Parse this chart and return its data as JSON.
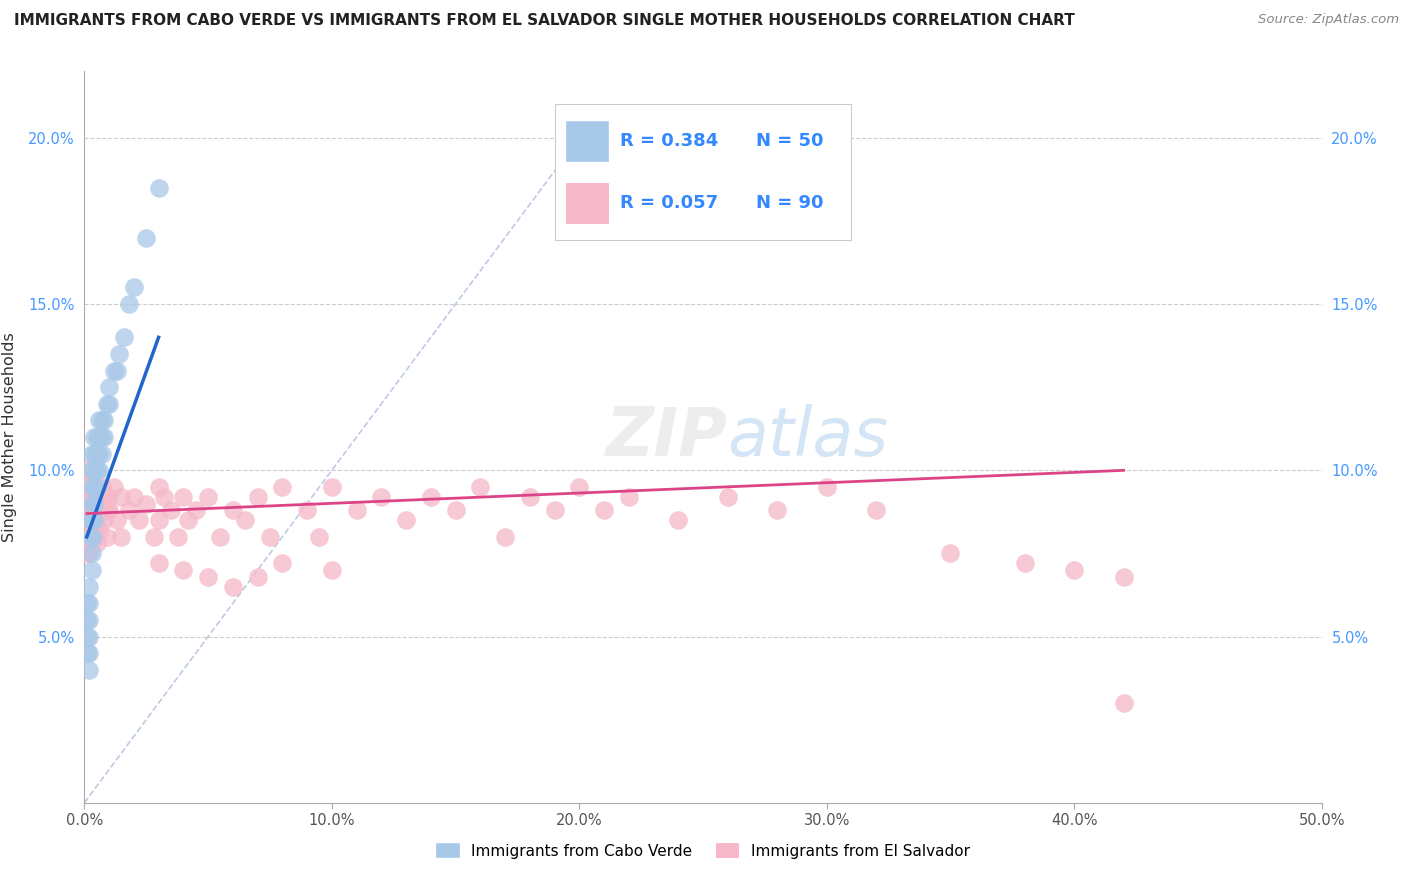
{
  "title": "IMMIGRANTS FROM CABO VERDE VS IMMIGRANTS FROM EL SALVADOR SINGLE MOTHER HOUSEHOLDS CORRELATION CHART",
  "source": "Source: ZipAtlas.com",
  "ylabel": "Single Mother Households",
  "xlim": [
    0.0,
    0.5
  ],
  "ylim": [
    0.0,
    0.22
  ],
  "xticks": [
    0.0,
    0.1,
    0.2,
    0.3,
    0.4,
    0.5
  ],
  "xticklabels": [
    "0.0%",
    "10.0%",
    "20.0%",
    "30.0%",
    "40.0%",
    "50.0%"
  ],
  "yticks": [
    0.0,
    0.05,
    0.1,
    0.15,
    0.2
  ],
  "yticklabels": [
    "",
    "5.0%",
    "10.0%",
    "15.0%",
    "20.0%"
  ],
  "R_blue": 0.384,
  "N_blue": 50,
  "R_pink": 0.057,
  "N_pink": 90,
  "blue_color": "#a8c8e8",
  "pink_color": "#f4b8c8",
  "blue_line_color": "#2266cc",
  "pink_line_color": "#dd4488",
  "dashed_line_color": "#aabfdd",
  "cabo_verde_x": [
    0.001,
    0.001,
    0.001,
    0.001,
    0.002,
    0.002,
    0.002,
    0.002,
    0.002,
    0.002,
    0.003,
    0.003,
    0.003,
    0.003,
    0.003,
    0.003,
    0.003,
    0.003,
    0.003,
    0.003,
    0.004,
    0.004,
    0.004,
    0.004,
    0.004,
    0.004,
    0.005,
    0.005,
    0.005,
    0.005,
    0.006,
    0.006,
    0.006,
    0.006,
    0.007,
    0.007,
    0.007,
    0.008,
    0.008,
    0.009,
    0.01,
    0.01,
    0.012,
    0.013,
    0.014,
    0.016,
    0.018,
    0.02,
    0.025,
    0.03
  ],
  "cabo_verde_y": [
    0.045,
    0.05,
    0.055,
    0.06,
    0.04,
    0.045,
    0.05,
    0.055,
    0.06,
    0.065,
    0.07,
    0.075,
    0.08,
    0.085,
    0.09,
    0.095,
    0.1,
    0.105,
    0.085,
    0.08,
    0.09,
    0.095,
    0.1,
    0.105,
    0.11,
    0.085,
    0.095,
    0.1,
    0.105,
    0.11,
    0.1,
    0.105,
    0.11,
    0.115,
    0.105,
    0.11,
    0.115,
    0.11,
    0.115,
    0.12,
    0.12,
    0.125,
    0.13,
    0.13,
    0.135,
    0.14,
    0.15,
    0.155,
    0.17,
    0.185
  ],
  "el_salvador_x": [
    0.001,
    0.001,
    0.001,
    0.001,
    0.001,
    0.002,
    0.002,
    0.002,
    0.002,
    0.002,
    0.002,
    0.003,
    0.003,
    0.003,
    0.003,
    0.003,
    0.004,
    0.004,
    0.004,
    0.004,
    0.005,
    0.005,
    0.005,
    0.006,
    0.006,
    0.006,
    0.007,
    0.007,
    0.008,
    0.008,
    0.009,
    0.009,
    0.01,
    0.01,
    0.012,
    0.013,
    0.015,
    0.015,
    0.018,
    0.02,
    0.022,
    0.025,
    0.028,
    0.03,
    0.03,
    0.032,
    0.035,
    0.038,
    0.04,
    0.042,
    0.045,
    0.05,
    0.055,
    0.06,
    0.065,
    0.07,
    0.075,
    0.08,
    0.09,
    0.095,
    0.1,
    0.11,
    0.12,
    0.13,
    0.14,
    0.15,
    0.16,
    0.17,
    0.18,
    0.19,
    0.2,
    0.21,
    0.22,
    0.24,
    0.26,
    0.28,
    0.3,
    0.32,
    0.35,
    0.38,
    0.4,
    0.42,
    0.03,
    0.04,
    0.05,
    0.06,
    0.07,
    0.08,
    0.1,
    0.42
  ],
  "el_salvador_y": [
    0.085,
    0.09,
    0.095,
    0.1,
    0.075,
    0.085,
    0.088,
    0.092,
    0.097,
    0.08,
    0.075,
    0.09,
    0.085,
    0.092,
    0.078,
    0.095,
    0.088,
    0.092,
    0.082,
    0.095,
    0.085,
    0.09,
    0.078,
    0.092,
    0.088,
    0.082,
    0.09,
    0.095,
    0.085,
    0.092,
    0.088,
    0.08,
    0.092,
    0.088,
    0.095,
    0.085,
    0.092,
    0.08,
    0.088,
    0.092,
    0.085,
    0.09,
    0.08,
    0.095,
    0.085,
    0.092,
    0.088,
    0.08,
    0.092,
    0.085,
    0.088,
    0.092,
    0.08,
    0.088,
    0.085,
    0.092,
    0.08,
    0.095,
    0.088,
    0.08,
    0.095,
    0.088,
    0.092,
    0.085,
    0.092,
    0.088,
    0.095,
    0.08,
    0.092,
    0.088,
    0.095,
    0.088,
    0.092,
    0.085,
    0.092,
    0.088,
    0.095,
    0.088,
    0.075,
    0.072,
    0.07,
    0.068,
    0.072,
    0.07,
    0.068,
    0.065,
    0.068,
    0.072,
    0.07,
    0.03
  ],
  "blue_line_x": [
    0.001,
    0.03
  ],
  "blue_line_y": [
    0.08,
    0.14
  ],
  "pink_line_x": [
    0.001,
    0.42
  ],
  "pink_line_y": [
    0.087,
    0.1
  ]
}
